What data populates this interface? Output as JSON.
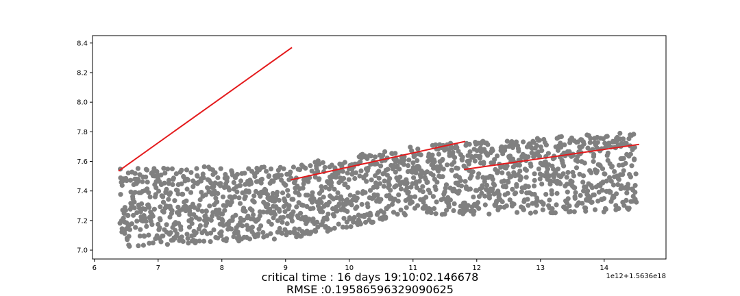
{
  "chart_data": {
    "type": "scatter",
    "x_tick_labels": [
      "6",
      "7",
      "8",
      "9",
      "10",
      "11",
      "12",
      "13",
      "14"
    ],
    "y_tick_labels": [
      "7.0",
      "7.2",
      "7.4",
      "7.6",
      "7.8",
      "8.0",
      "8.2",
      "8.4"
    ],
    "x_ticks": [
      6,
      7,
      8,
      9,
      10,
      11,
      12,
      13,
      14
    ],
    "y_ticks": [
      7.0,
      7.2,
      7.4,
      7.6,
      7.8,
      8.0,
      8.2,
      8.4
    ],
    "xlim": [
      5.97,
      14.97
    ],
    "ylim": [
      6.94,
      8.45
    ],
    "x_offset_label": "1e12+1.5636e18",
    "grid": false,
    "scatter_color": "#808080",
    "line_color": "#e41a1c",
    "scatter_band": [
      {
        "x": 6.4,
        "y_min": 7.02,
        "y_max": 7.55
      },
      {
        "x": 9.1,
        "y_min": 7.08,
        "y_max": 7.58
      },
      {
        "x": 11.0,
        "y_min": 7.24,
        "y_max": 7.7
      },
      {
        "x": 11.8,
        "y_min": 7.24,
        "y_max": 7.73
      },
      {
        "x": 14.5,
        "y_min": 7.26,
        "y_max": 7.8
      }
    ],
    "fit_lines": [
      {
        "x": [
          6.38,
          9.1
        ],
        "y": [
          7.535,
          8.37
        ]
      },
      {
        "x": [
          9.08,
          11.82
        ],
        "y": [
          7.475,
          7.735
        ]
      },
      {
        "x": [
          11.8,
          14.55
        ],
        "y": [
          7.545,
          7.715
        ]
      }
    ],
    "caption_line1": "critical time : 16 days 19:10:02.146678",
    "caption_line2": "RMSE :0.1958659632909 0625"
  }
}
